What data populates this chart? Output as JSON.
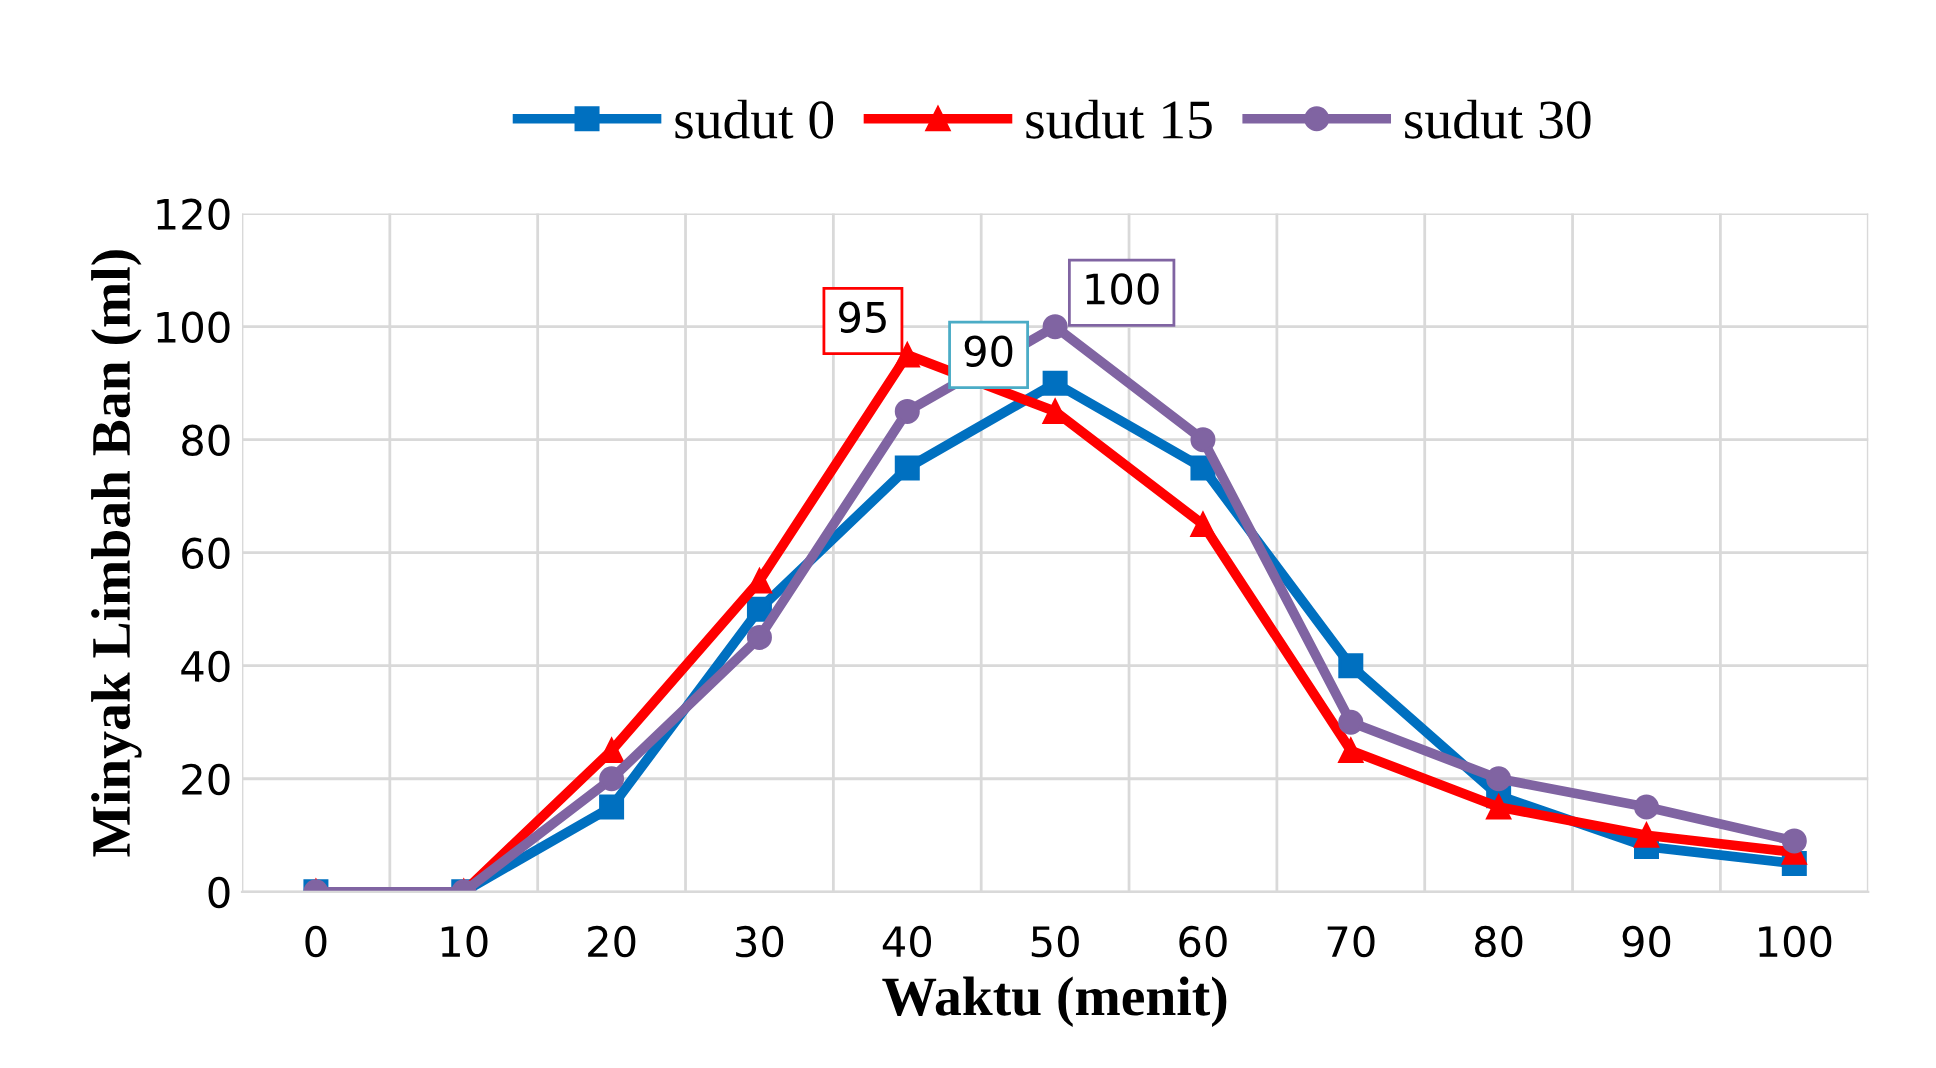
{
  "chart_data": {
    "type": "line",
    "xlabel": "Waktu (menit)",
    "ylabel": "Minyak Limbah Ban (ml)",
    "categories": [
      "0",
      "10",
      "20",
      "30",
      "40",
      "50",
      "60",
      "70",
      "80",
      "90",
      "100"
    ],
    "series": [
      {
        "name": "sudut 0",
        "color": "#0070c0",
        "marker": "square",
        "values": [
          0,
          0,
          15,
          50,
          75,
          90,
          75,
          40,
          17,
          8,
          5
        ]
      },
      {
        "name": "sudut 15",
        "color": "#ff0000",
        "marker": "triangle",
        "values": [
          0,
          0,
          25,
          55,
          95,
          85,
          65,
          25,
          15,
          10,
          7
        ]
      },
      {
        "name": "sudut 30",
        "color": "#8064a2",
        "marker": "circle",
        "values": [
          0,
          0,
          20,
          45,
          85,
          100,
          80,
          30,
          20,
          15,
          9
        ]
      }
    ],
    "annotations": [
      {
        "text": "95",
        "x": "40",
        "y": 95
      },
      {
        "text": "90",
        "x": "50",
        "y": 90
      },
      {
        "text": "100",
        "x": "50",
        "y": 100
      }
    ],
    "ylim": [
      0,
      120
    ],
    "yticks": [
      0,
      20,
      40,
      60,
      80,
      100,
      120
    ],
    "grid": true,
    "legend": "top",
    "line_style": "solid"
  }
}
